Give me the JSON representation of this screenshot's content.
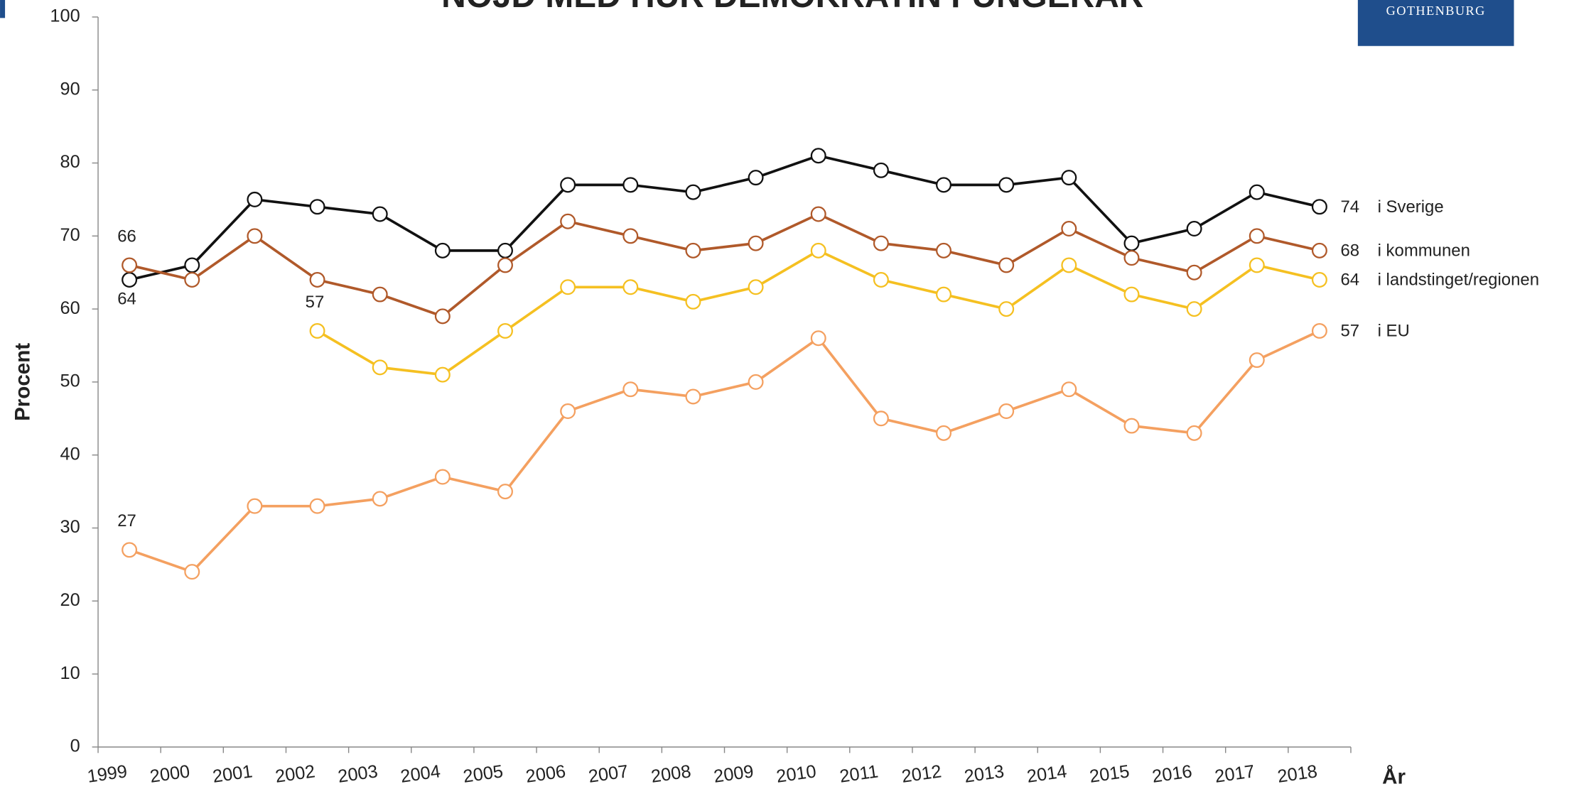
{
  "chart_data": {
    "type": "line",
    "title": "NÖJD MED HUR DEMOKRATIN FUNGERAR",
    "logo": "GOTHENBURG",
    "y_label": "Procent",
    "x_label": "År",
    "categories": [
      "1999",
      "2000",
      "2001",
      "2002",
      "2003",
      "2004",
      "2005",
      "2006",
      "2007",
      "2008",
      "2009",
      "2010",
      "2011",
      "2012",
      "2013",
      "2014",
      "2015",
      "2016",
      "2017",
      "2018"
    ],
    "series": [
      {
        "name": "i Sverige",
        "color": "#111111",
        "values": [
          64,
          66,
          75,
          74,
          73,
          68,
          68,
          77,
          77,
          76,
          78,
          81,
          79,
          77,
          77,
          78,
          69,
          71,
          76,
          74
        ]
      },
      {
        "name": "i kommunen",
        "color": "#b0592a",
        "values": [
          66,
          64,
          70,
          64,
          62,
          59,
          66,
          72,
          70,
          68,
          69,
          73,
          69,
          68,
          66,
          71,
          67,
          65,
          70,
          68
        ]
      },
      {
        "name": "i landstinget/regionen",
        "color": "#f5c021",
        "values": [
          null,
          null,
          null,
          57,
          52,
          51,
          57,
          63,
          63,
          61,
          63,
          68,
          64,
          62,
          60,
          66,
          62,
          60,
          66,
          64
        ]
      },
      {
        "name": "i EU",
        "color": "#f4a060",
        "values": [
          27,
          24,
          33,
          33,
          34,
          37,
          35,
          46,
          49,
          48,
          50,
          56,
          45,
          43,
          46,
          49,
          44,
          43,
          53,
          57
        ]
      }
    ],
    "ylim": [
      0,
      100
    ],
    "yticks": [
      0,
      10,
      20,
      30,
      40,
      50,
      60,
      70,
      80,
      90,
      100
    ]
  }
}
